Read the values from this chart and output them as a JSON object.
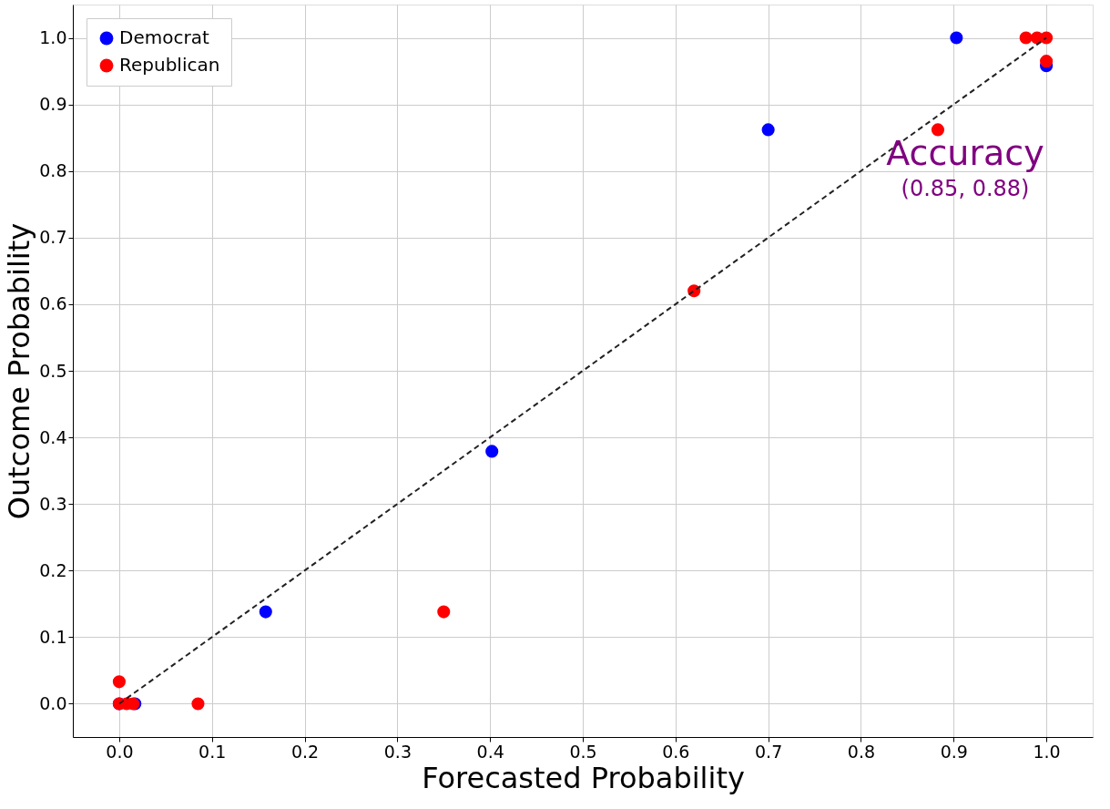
{
  "chart_data": {
    "type": "scatter",
    "xlabel": "Forecasted Probability",
    "ylabel": "Outcome Probability",
    "xlim": [
      -0.05,
      1.05
    ],
    "ylim": [
      -0.05,
      1.05
    ],
    "xticks": [
      {
        "value": 0,
        "label": "0.0"
      },
      0.1,
      0.2,
      0.3,
      0.4,
      0.5,
      0.6,
      0.7,
      0.8,
      0.9,
      {
        "value": 1,
        "label": "1.0"
      }
    ],
    "yticks": [
      {
        "value": 0,
        "label": "0.0"
      },
      0.1,
      0.2,
      0.3,
      0.4,
      0.5,
      0.6,
      0.7,
      0.8,
      0.9,
      {
        "value": 1,
        "label": "1.0"
      }
    ],
    "grid": true,
    "legend": "top left",
    "marker": "circle",
    "series": [
      {
        "name": "Democrat",
        "color": "#0000ff",
        "x": [
          0.0,
          0.017,
          0.158,
          0.402,
          0.7,
          0.903,
          1.0
        ],
        "values": [
          0.0,
          0.0,
          0.138,
          0.379,
          0.862,
          1.0,
          0.958
        ]
      },
      {
        "name": "Republican",
        "color": "#ff0000",
        "x": [
          0.0,
          0.0,
          0.008,
          0.015,
          0.085,
          0.35,
          0.62,
          0.883,
          0.978,
          0.99,
          1.0,
          1.0
        ],
        "values": [
          0.0,
          0.033,
          0.0,
          0.0,
          0.0,
          0.138,
          0.62,
          0.862,
          1.0,
          1.0,
          1.0,
          0.965
        ]
      },
      {
        "type": "line",
        "color": "#222222",
        "line_style": "dashed",
        "marker": "none",
        "x": [
          0.0,
          1.0
        ],
        "values": [
          0.0,
          1.0
        ]
      }
    ],
    "annotations": [
      "Accuracy",
      "(0.85, 0.88)"
    ]
  }
}
